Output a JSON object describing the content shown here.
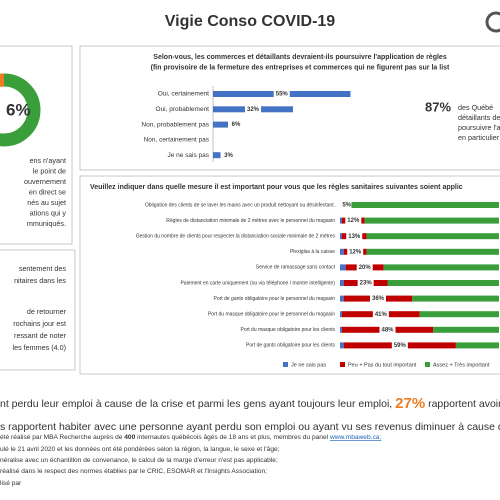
{
  "header": {
    "title": "Vigie Conso COVID-19"
  },
  "left_top": {
    "stat": "6%",
    "lines": [
      "ens n'ayant",
      "le point de",
      "ouvernement",
      "en direct se",
      "nés au sujet",
      "ations qui y",
      "mmuniqués."
    ]
  },
  "chart_data": [
    {
      "type": "hbar",
      "title": [
        "Selon-vous, les commerces et détaillants devraient-ils poursuivre l'application de règles",
        "(fin provisoire de la fermeture des entreprises et commerces qui ne figurent pas sur la list"
      ],
      "categories": [
        "Oui, certainement",
        "Oui, probablement",
        "Non, probablement pas",
        "Non, certainement pas",
        "Je ne sais pas"
      ],
      "values": [
        55,
        32,
        6,
        null,
        3
      ],
      "value_labels": [
        "55%",
        "32%",
        "6%",
        null,
        "3%"
      ],
      "color": "#4472c4",
      "xlim": [
        0,
        60
      ]
    },
    {
      "type": "stacked_hbar",
      "title": "Veuillez indiquer dans quelle mesure il est important pour vous que les règles sanitaires suivantes soient applic",
      "categories": [
        "Obligation des clients de se laver les mains avec un produit nettoyant ou désinfectant.",
        "Règles de distanciation minimale de 2 mètres avec le personnel du magasin",
        "Gestion du nombre de clients pour respecter la distanciation sociale minimale de 2 mètres",
        "Plexiglas à la caisse",
        "Service de ramassage sans contact",
        "Paiement en carte uniquement (ou via téléphone / montre intelligente)",
        "Port de gants obligatoire pour le personnel du magasin",
        "Port du masque obligatoire pour le personnel du magasin",
        "Port du masque obligatoire pour les clients",
        "Port de gants obligatoire pour les clients"
      ],
      "series": [
        {
          "name": "Je ne sais pas",
          "color": "#4472c4",
          "values": [
            1,
            1,
            1,
            2,
            3,
            2,
            2,
            1,
            1,
            2
          ]
        },
        {
          "name": "Peu + Pas du tout important",
          "color": "#c00000",
          "values": [
            5,
            12,
            13,
            12,
            20,
            23,
            36,
            41,
            48,
            59
          ],
          "value_labels": [
            "5%",
            "12%",
            "13%",
            "12%",
            "20%",
            "23%",
            "36%",
            "41%",
            "48%",
            "59%"
          ]
        },
        {
          "name": "Assez + Très important",
          "color": "#3a9e3a",
          "values": [
            94,
            87,
            86,
            86,
            77,
            75,
            62,
            58,
            51,
            39
          ]
        }
      ],
      "xlim": [
        0,
        100
      ]
    }
  ],
  "callout": {
    "stat": "87%",
    "lines": [
      "des Québé",
      "détaillants devraie",
      "poursuivre l'applic",
      "en particulier les f"
    ]
  },
  "left_middle": {
    "paragraph1": [
      "sentement des",
      "nitaires dans les"
    ],
    "paragraph2": [
      "de retourner",
      "rochains jour est",
      "ressant de noter",
      "les femmes (4.0)"
    ]
  },
  "highlights": {
    "line1": {
      "before": "nt perdu leur emploi à cause de la crise et parmi les gens ayant toujours leur emploi,",
      "stat": "27%",
      "after": "rapportent avoir subi une"
    },
    "line2": "s rapportent habiter avec une personne ayant perdu son emploi ou ayant vu ses revenus diminuer à cause de la crise, d"
  },
  "footnotes": {
    "line1": [
      "été réalisé par MBA Recherche auprès de",
      "400",
      "internautes québécois âgés de 18 ans et plus, membres du panel",
      "www.mbaweb.ca;"
    ],
    "line2": "ulé le 21 avril 2020 et les données ont été pondérées selon la région, la langue, le sexe et l'âge;",
    "line3": "néralise avec un échantillon de convenance, le calcul de la marge d'erreur n'est pas applicable;",
    "line4": "réalisé dans le respect des normes établies par le CRIC, ESOMAR et l'Insights Association;",
    "line5": "lisé par"
  }
}
